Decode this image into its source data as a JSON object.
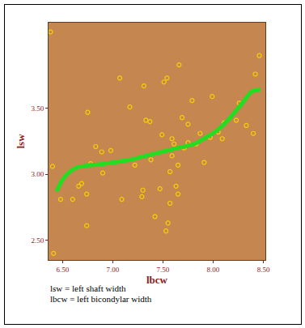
{
  "chart_data": {
    "type": "scatter",
    "x_label": "lbcw",
    "y_label": "lsw",
    "xlim": [
      6.36,
      8.52
    ],
    "ylim": [
      2.35,
      4.15
    ],
    "xticks": [
      {
        "value": 6.5,
        "label": "6.50"
      },
      {
        "value": 7.0,
        "label": "7.00"
      },
      {
        "value": 7.5,
        "label": "7.50"
      },
      {
        "value": 8.0,
        "label": "8.00"
      },
      {
        "value": 8.5,
        "label": "8.50"
      }
    ],
    "yticks": [
      {
        "value": 2.5,
        "label": "2.50"
      },
      {
        "value": 3.0,
        "label": "3.00"
      },
      {
        "value": 3.5,
        "label": "3.50"
      }
    ],
    "grid": false,
    "annotations": [
      "lsw = left shaft width",
      "lbcw = left bicondylar width"
    ],
    "series": [
      {
        "type": "scatter",
        "color": "#f2d200",
        "marker": "open circle",
        "x": [
          6.38,
          6.4,
          6.41,
          6.48,
          6.6,
          6.66,
          6.69,
          6.74,
          6.74,
          6.75,
          6.78,
          6.83,
          6.89,
          7.17,
          7.07,
          7.31,
          7.37,
          7.29,
          7.38,
          7.42,
          7.47,
          7.49,
          7.51,
          7.54,
          7.53,
          7.55,
          7.57,
          7.59,
          7.61,
          7.59,
          7.63,
          7.65,
          7.65,
          7.66,
          7.69,
          7.71,
          7.75,
          7.75,
          7.79,
          7.83,
          7.87,
          7.91,
          7.97,
          7.99,
          8.05,
          8.09,
          8.11,
          8.23,
          8.26,
          8.33,
          8.4,
          8.42,
          8.46,
          7.33,
          7.09,
          7.3,
          7.22,
          6.98,
          6.9,
          7.57
        ],
        "values": [
          4.08,
          3.06,
          2.4,
          2.81,
          2.81,
          2.91,
          2.93,
          2.85,
          2.61,
          3.47,
          3.08,
          3.21,
          3.17,
          3.51,
          3.73,
          3.67,
          3.4,
          2.83,
          3.11,
          2.68,
          2.89,
          3.3,
          3.7,
          3.73,
          2.57,
          2.63,
          3.02,
          3.27,
          3.23,
          3.14,
          2.91,
          2.85,
          3.07,
          3.83,
          3.43,
          3.2,
          3.38,
          3.24,
          3.56,
          3.23,
          3.31,
          3.09,
          3.28,
          3.59,
          3.32,
          3.27,
          3.39,
          3.41,
          3.54,
          3.37,
          3.31,
          3.76,
          3.9,
          3.41,
          2.81,
          2.88,
          3.07,
          3.18,
          3.01,
          2.78
        ]
      },
      {
        "type": "line",
        "color": "#22dd22",
        "line_style": "solid",
        "x": [
          6.44,
          6.52,
          6.64,
          6.81,
          7.01,
          7.17,
          7.33,
          7.49,
          7.65,
          7.81,
          7.93,
          8.05,
          8.17,
          8.29,
          8.39,
          8.47
        ],
        "values": [
          2.87,
          2.98,
          3.05,
          3.07,
          3.09,
          3.11,
          3.14,
          3.17,
          3.2,
          3.23,
          3.28,
          3.34,
          3.43,
          3.54,
          3.63,
          3.64
        ]
      }
    ]
  }
}
